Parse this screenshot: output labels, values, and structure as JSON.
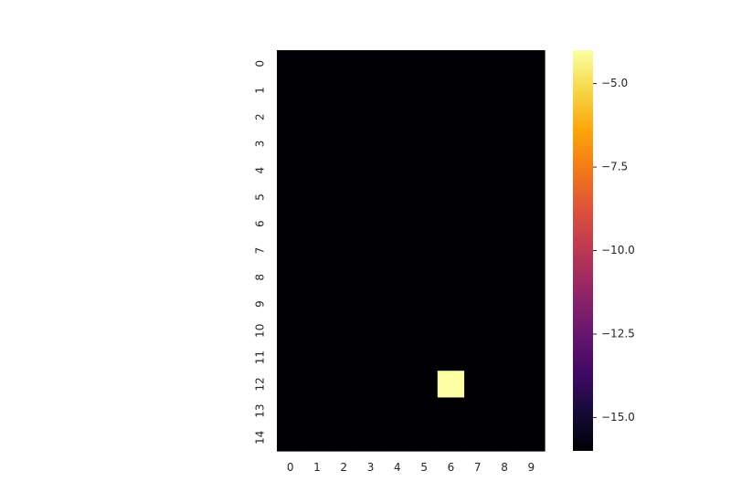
{
  "chart_data": {
    "type": "heatmap",
    "title": "",
    "xlabel": "",
    "ylabel": "",
    "x_labels": [
      "0",
      "1",
      "2",
      "3",
      "4",
      "5",
      "6",
      "7",
      "8",
      "9"
    ],
    "y_labels": [
      "0",
      "1",
      "2",
      "3",
      "4",
      "5",
      "6",
      "7",
      "8",
      "9",
      "10",
      "11",
      "12",
      "13",
      "14"
    ],
    "values": [
      [
        -16,
        -16,
        -16,
        -16,
        -16,
        -16,
        -16,
        -16,
        -16,
        -16
      ],
      [
        -16,
        -16,
        -16,
        -16,
        -16,
        -16,
        -16,
        -16,
        -16,
        -16
      ],
      [
        -16,
        -16,
        -16,
        -16,
        -16,
        -16,
        -16,
        -16,
        -16,
        -16
      ],
      [
        -16,
        -16,
        -16,
        -16,
        -16,
        -16,
        -16,
        -16,
        -16,
        -16
      ],
      [
        -16,
        -16,
        -16,
        -16,
        -16,
        -16,
        -16,
        -16,
        -16,
        -16
      ],
      [
        -16,
        -16,
        -16,
        -16,
        -16,
        -16,
        -16,
        -16,
        -16,
        -16
      ],
      [
        -16,
        -16,
        -16,
        -16,
        -16,
        -16,
        -16,
        -16,
        -16,
        -16
      ],
      [
        -16,
        -16,
        -16,
        -16,
        -16,
        -16,
        -16,
        -16,
        -16,
        -16
      ],
      [
        -16,
        -16,
        -16,
        -16,
        -16,
        -16,
        -16,
        -16,
        -16,
        -16
      ],
      [
        -16,
        -16,
        -16,
        -16,
        -16,
        -16,
        -16,
        -16,
        -16,
        -16
      ],
      [
        -16,
        -16,
        -16,
        -16,
        -16,
        -16,
        -16,
        -16,
        -16,
        -16
      ],
      [
        -16,
        -16,
        -16,
        -16,
        -16,
        -16,
        -16,
        -16,
        -16,
        -16
      ],
      [
        -16,
        -16,
        -16,
        -16,
        -16,
        -16,
        -4,
        -16,
        -16,
        -16
      ],
      [
        -16,
        -16,
        -16,
        -16,
        -16,
        -16,
        -16,
        -16,
        -16,
        -16
      ],
      [
        -16,
        -16,
        -16,
        -16,
        -16,
        -16,
        -16,
        -16,
        -16,
        -16
      ]
    ],
    "colormap": "inferno",
    "vmin": -16,
    "vmax": -4,
    "colorbar": {
      "ticks": [
        -5.0,
        -7.5,
        -10.0,
        -12.5,
        -15.0
      ],
      "tick_labels": [
        "−5.0",
        "−7.5",
        "−10.0",
        "−12.5",
        "−15.0"
      ]
    },
    "grid": false,
    "colors": {
      "low": "#000004",
      "high": "#fcffa4",
      "background": "#ffffff",
      "text": "#262626"
    }
  }
}
